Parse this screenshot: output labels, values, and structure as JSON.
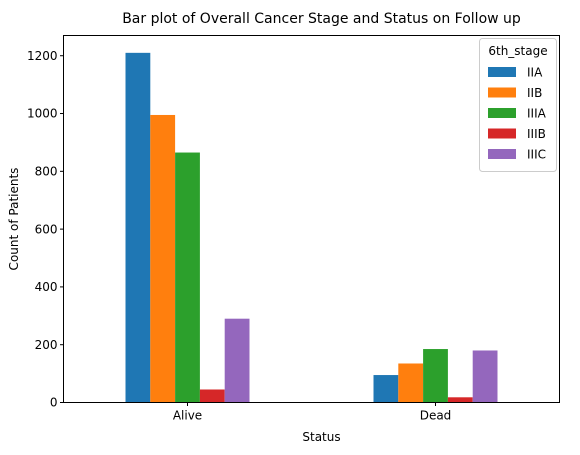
{
  "chart_data": {
    "type": "bar",
    "title": "Bar plot of Overall Cancer Stage and Status on Follow up",
    "xlabel": "Status",
    "ylabel": "Count of Patients",
    "categories": [
      "Alive",
      "Dead"
    ],
    "series": [
      {
        "name": "IIA",
        "values": [
          1210,
          95
        ],
        "color": "#1f77b4"
      },
      {
        "name": "IIB",
        "values": [
          995,
          135
        ],
        "color": "#ff7f0e"
      },
      {
        "name": "IIIA",
        "values": [
          865,
          185
        ],
        "color": "#2ca02c"
      },
      {
        "name": "IIIB",
        "values": [
          45,
          18
        ],
        "color": "#d62728"
      },
      {
        "name": "IIIC",
        "values": [
          290,
          180
        ],
        "color": "#9467bd"
      }
    ],
    "ylim": [
      0,
      1270
    ],
    "yticks": [
      0,
      200,
      400,
      600,
      800,
      1000,
      1200
    ],
    "grid": false,
    "legend": {
      "title": "6th_stage",
      "placement": "top-right"
    }
  }
}
